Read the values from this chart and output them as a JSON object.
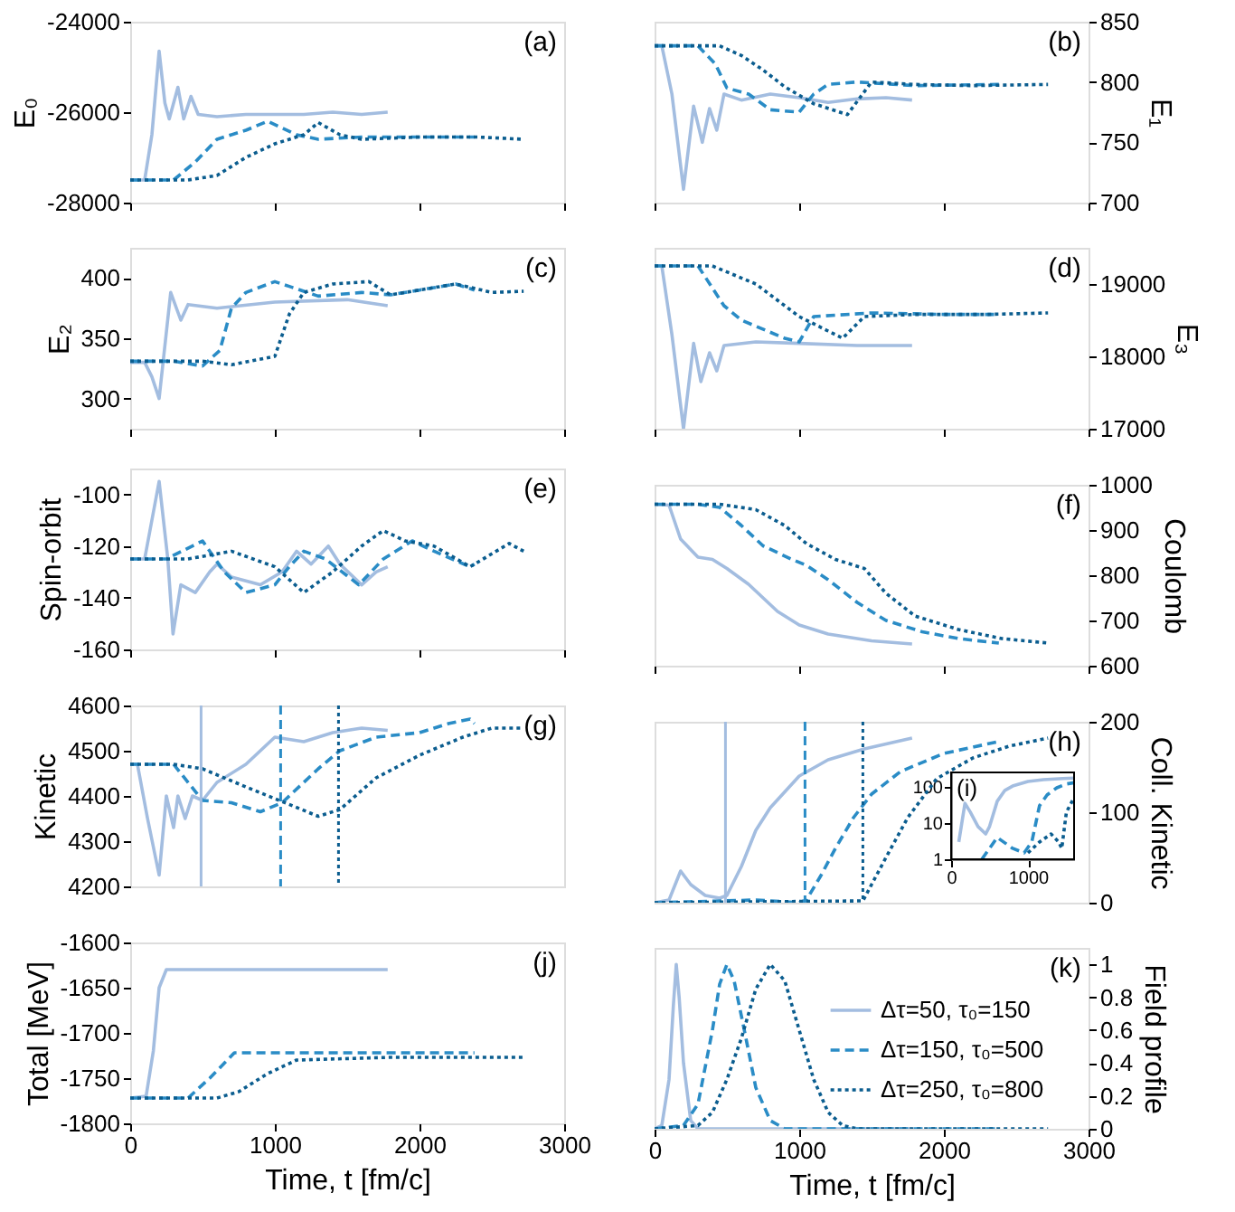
{
  "chart_data": [
    {
      "type": "line",
      "ylabel": "E₀",
      "xlim": [
        0,
        3000
      ],
      "xticks": [
        0,
        1000,
        2000,
        3000
      ],
      "ylim": [
        -28000,
        -24000
      ],
      "yticks": [
        -28000,
        -26000,
        -24000
      ],
      "tick_labels": "y",
      "annotations": [
        "(a)"
      ],
      "series": [
        {
          "color": "#a3bde0",
          "line_style": "solid",
          "x": [
            0,
            100,
            150,
            200,
            240,
            270,
            330,
            370,
            420,
            470,
            600,
            800,
            1000,
            1200,
            1400,
            1600,
            1780
          ],
          "values": [
            -27500,
            -27500,
            -26500,
            -24650,
            -25800,
            -26150,
            -25450,
            -26150,
            -25650,
            -26050,
            -26100,
            -26050,
            -26050,
            -26050,
            -26000,
            -26050,
            -26000
          ]
        },
        {
          "color": "#2a8cc6",
          "line_style": "dashed",
          "x": [
            0,
            300,
            450,
            600,
            800,
            950,
            1150,
            1300,
            1600,
            2000,
            2380
          ],
          "values": [
            -27500,
            -27500,
            -27100,
            -26600,
            -26400,
            -26200,
            -26500,
            -26600,
            -26550,
            -26550,
            -26550
          ]
        },
        {
          "color": "#0b5d8f",
          "line_style": "dotted",
          "x": [
            0,
            400,
            600,
            800,
            1000,
            1200,
            1300,
            1450,
            1600,
            2000,
            2400,
            2720
          ],
          "values": [
            -27500,
            -27500,
            -27400,
            -27000,
            -26700,
            -26500,
            -26230,
            -26500,
            -26600,
            -26550,
            -26550,
            -26600
          ]
        }
      ]
    },
    {
      "type": "line",
      "ylabel": "E₁",
      "xlim": [
        0,
        3000
      ],
      "xticks": [
        0,
        1000,
        2000,
        3000
      ],
      "ylim": [
        700,
        850
      ],
      "yticks": [
        700,
        750,
        800,
        850
      ],
      "tick_labels": "y",
      "annotations": [
        "(b)"
      ],
      "series": [
        {
          "color": "#a3bde0",
          "line_style": "solid",
          "x": [
            0,
            50,
            120,
            200,
            270,
            330,
            380,
            430,
            480,
            600,
            800,
            1000,
            1200,
            1400,
            1600,
            1780
          ],
          "values": [
            830,
            830,
            790,
            711,
            780,
            750,
            778,
            760,
            790,
            785,
            790,
            787,
            783,
            786,
            787,
            785
          ]
        },
        {
          "color": "#2a8cc6",
          "line_style": "dashed",
          "x": [
            0,
            300,
            420,
            500,
            650,
            800,
            1000,
            1100,
            1200,
            1400,
            1800,
            2380
          ],
          "values": [
            830,
            830,
            815,
            795,
            790,
            777,
            775,
            790,
            798,
            800,
            797,
            798
          ]
        },
        {
          "color": "#0b5d8f",
          "line_style": "dotted",
          "x": [
            0,
            450,
            600,
            750,
            900,
            1100,
            1333,
            1500,
            1800,
            2200,
            2720
          ],
          "values": [
            830,
            830,
            822,
            810,
            796,
            782,
            773,
            800,
            798,
            797,
            798
          ]
        }
      ]
    },
    {
      "type": "line",
      "ylabel": "E₂",
      "xlim": [
        0,
        3000
      ],
      "xticks": [
        0,
        1000,
        2000,
        3000
      ],
      "ylim": [
        275,
        425
      ],
      "yticks": [
        300,
        350,
        400
      ],
      "tick_labels": "y",
      "annotations": [
        "(c)"
      ],
      "series": [
        {
          "color": "#a3bde0",
          "line_style": "solid",
          "x": [
            0,
            100,
            150,
            200,
            280,
            350,
            400,
            600,
            1000,
            1500,
            1780
          ],
          "values": [
            330,
            330,
            318,
            300,
            388,
            365,
            378,
            375,
            380,
            382,
            377
          ]
        },
        {
          "color": "#2a8cc6",
          "line_style": "dashed",
          "x": [
            0,
            300,
            500,
            620,
            700,
            800,
            1000,
            1100,
            1300,
            1600,
            1800,
            2000,
            2250,
            2380
          ],
          "values": [
            331,
            331,
            327,
            340,
            375,
            388,
            397,
            393,
            385,
            388,
            386,
            390,
            395,
            390
          ]
        },
        {
          "color": "#0b5d8f",
          "line_style": "dotted",
          "x": [
            0,
            500,
            700,
            1000,
            1100,
            1200,
            1400,
            1650,
            1800,
            2100,
            2250,
            2500,
            2720
          ],
          "values": [
            331,
            331,
            328,
            335,
            370,
            388,
            395,
            397,
            386,
            392,
            395,
            388,
            389
          ]
        }
      ]
    },
    {
      "type": "line",
      "ylabel": "E₃",
      "xlim": [
        0,
        3000
      ],
      "xticks": [
        0,
        1000,
        2000,
        3000
      ],
      "ylim": [
        17000,
        19500
      ],
      "yticks": [
        17000,
        18000,
        19000
      ],
      "tick_labels": "y",
      "annotations": [
        "(d)"
      ],
      "series": [
        {
          "color": "#a3bde0",
          "line_style": "solid",
          "x": [
            0,
            50,
            120,
            200,
            270,
            320,
            380,
            430,
            480,
            700,
            1000,
            1400,
            1780
          ],
          "values": [
            19250,
            19250,
            18300,
            17000,
            18180,
            17650,
            18050,
            17800,
            18150,
            18200,
            18180,
            18150,
            18150
          ]
        },
        {
          "color": "#2a8cc6",
          "line_style": "dashed",
          "x": [
            0,
            300,
            480,
            600,
            900,
            1000,
            1100,
            1500,
            2000,
            2380
          ],
          "values": [
            19250,
            19250,
            18700,
            18500,
            18250,
            18200,
            18550,
            18600,
            18580,
            18580
          ]
        },
        {
          "color": "#0b5d8f",
          "line_style": "dotted",
          "x": [
            0,
            400,
            700,
            1000,
            1200,
            1300,
            1450,
            1800,
            2300,
            2720
          ],
          "values": [
            19250,
            19250,
            19000,
            18550,
            18350,
            18250,
            18550,
            18580,
            18580,
            18600
          ]
        }
      ]
    },
    {
      "type": "line",
      "ylabel": "Spin-orbit",
      "xlim": [
        0,
        3000
      ],
      "xticks": [
        0,
        1000,
        2000,
        3000
      ],
      "ylim": [
        -160,
        -90
      ],
      "yticks": [
        -160,
        -140,
        -120,
        -100
      ],
      "tick_labels": "y",
      "annotations": [
        "(e)"
      ],
      "series": [
        {
          "color": "#a3bde0",
          "line_style": "solid",
          "x": [
            0,
            100,
            200,
            260,
            296,
            350,
            450,
            550,
            600,
            700,
            900,
            1050,
            1150,
            1250,
            1370,
            1450,
            1600,
            1700,
            1780
          ],
          "values": [
            -125,
            -125,
            -95,
            -125,
            -154,
            -135,
            -138,
            -130,
            -127,
            -132,
            -135,
            -130,
            -122,
            -127,
            -120,
            -127,
            -135,
            -130,
            -128
          ]
        },
        {
          "color": "#2a8cc6",
          "line_style": "dashed",
          "x": [
            0,
            250,
            500,
            650,
            800,
            1000,
            1100,
            1200,
            1350,
            1580,
            1750,
            1950,
            2100,
            2350,
            2380
          ],
          "values": [
            -125,
            -125,
            -118,
            -130,
            -138,
            -135,
            -128,
            -122,
            -125,
            -135,
            -125,
            -118,
            -122,
            -128,
            -127
          ]
        },
        {
          "color": "#0b5d8f",
          "line_style": "dotted",
          "x": [
            0,
            400,
            700,
            1000,
            1200,
            1400,
            1600,
            1750,
            1900,
            2100,
            2350,
            2500,
            2620,
            2720
          ],
          "values": [
            -125,
            -125,
            -122,
            -128,
            -138,
            -130,
            -120,
            -114,
            -118,
            -120,
            -128,
            -123,
            -119,
            -122
          ]
        }
      ]
    },
    {
      "type": "line",
      "ylabel": "Coulomb",
      "xlim": [
        0,
        3000
      ],
      "xticks": [
        0,
        1000,
        2000,
        3000
      ],
      "ylim": [
        600,
        1000
      ],
      "yticks": [
        600,
        700,
        800,
        900,
        1000
      ],
      "tick_labels": "y",
      "annotations": [
        "(f)"
      ],
      "series": [
        {
          "color": "#a3bde0",
          "line_style": "solid",
          "x": [
            0,
            100,
            180,
            300,
            400,
            500,
            650,
            850,
            1000,
            1200,
            1500,
            1780
          ],
          "values": [
            957,
            955,
            880,
            840,
            835,
            815,
            780,
            720,
            690,
            670,
            655,
            648
          ]
        },
        {
          "color": "#2a8cc6",
          "line_style": "dashed",
          "x": [
            0,
            300,
            450,
            600,
            750,
            950,
            1050,
            1200,
            1400,
            1600,
            1850,
            2100,
            2380
          ],
          "values": [
            957,
            957,
            950,
            910,
            865,
            835,
            822,
            790,
            740,
            700,
            675,
            660,
            650
          ]
        },
        {
          "color": "#0b5d8f",
          "line_style": "dotted",
          "x": [
            0,
            450,
            700,
            900,
            1050,
            1250,
            1450,
            1600,
            1800,
            2100,
            2400,
            2720
          ],
          "values": [
            957,
            957,
            945,
            910,
            870,
            835,
            815,
            760,
            710,
            680,
            660,
            650
          ]
        }
      ]
    },
    {
      "type": "line",
      "ylabel": "Kinetic",
      "xlim": [
        0,
        3000
      ],
      "xticks": [
        0,
        1000,
        2000,
        3000
      ],
      "ylim": [
        4200,
        4600
      ],
      "yticks": [
        4200,
        4300,
        4400,
        4500,
        4600
      ],
      "tick_labels": "y",
      "annotations": [
        "(g)"
      ],
      "ref_lines": [
        {
          "axis": "x",
          "value": 490,
          "color": "#a3bde0",
          "line_style": "solid"
        },
        {
          "axis": "x",
          "value": 1040,
          "color": "#2a8cc6",
          "line_style": "dashed"
        },
        {
          "axis": "x",
          "value": 1440,
          "color": "#0b5d8f",
          "line_style": "dotted"
        }
      ],
      "series": [
        {
          "color": "#a3bde0",
          "line_style": "solid",
          "x": [
            0,
            50,
            120,
            200,
            250,
            300,
            330,
            380,
            430,
            500,
            600,
            800,
            900,
            1000,
            1200,
            1400,
            1600,
            1780
          ],
          "values": [
            4470,
            4470,
            4350,
            4225,
            4400,
            4330,
            4400,
            4350,
            4400,
            4390,
            4430,
            4470,
            4500,
            4530,
            4520,
            4540,
            4550,
            4545
          ]
        },
        {
          "color": "#2a8cc6",
          "line_style": "dashed",
          "x": [
            0,
            300,
            500,
            700,
            900,
            1050,
            1300,
            1450,
            1700,
            2000,
            2200,
            2350,
            2380
          ],
          "values": [
            4470,
            4470,
            4390,
            4385,
            4365,
            4385,
            4460,
            4500,
            4530,
            4540,
            4560,
            4570,
            4560
          ]
        },
        {
          "color": "#0b5d8f",
          "line_style": "dotted",
          "x": [
            0,
            300,
            500,
            800,
            1300,
            1450,
            1700,
            2000,
            2300,
            2500,
            2720
          ],
          "values": [
            4470,
            4470,
            4460,
            4420,
            4355,
            4370,
            4440,
            4490,
            4530,
            4550,
            4550
          ]
        }
      ]
    },
    {
      "type": "line",
      "ylabel": "Coll. Kinetic",
      "xlim": [
        0,
        3000
      ],
      "xticks": [
        0,
        1000,
        2000,
        3000
      ],
      "ylim": [
        0,
        200
      ],
      "yticks": [
        0,
        100,
        200
      ],
      "tick_labels": "y",
      "annotations": [
        "(h)"
      ],
      "ref_lines": [
        {
          "axis": "x",
          "value": 490,
          "color": "#a3bde0",
          "line_style": "solid"
        },
        {
          "axis": "x",
          "value": 1040,
          "color": "#2a8cc6",
          "line_style": "dashed"
        },
        {
          "axis": "x",
          "value": 1440,
          "color": "#0b5d8f",
          "line_style": "dotted"
        }
      ],
      "series": [
        {
          "color": "#a3bde0",
          "line_style": "solid",
          "x": [
            0,
            100,
            180,
            250,
            350,
            450,
            500,
            600,
            700,
            800,
            1000,
            1200,
            1450,
            1780
          ],
          "values": [
            0,
            3,
            35,
            20,
            8,
            5,
            8,
            40,
            80,
            105,
            140,
            158,
            170,
            182
          ]
        },
        {
          "color": "#2a8cc6",
          "line_style": "dashed",
          "x": [
            0,
            700,
            1000,
            1050,
            1150,
            1250,
            1375,
            1500,
            1700,
            2000,
            2375
          ],
          "values": [
            0,
            3,
            0,
            3,
            30,
            60,
            94,
            120,
            145,
            165,
            178
          ]
        },
        {
          "color": "#0b5d8f",
          "line_style": "dotted",
          "x": [
            0,
            1440,
            1500,
            1600,
            1750,
            1950,
            2200,
            2450,
            2720
          ],
          "values": [
            0,
            2,
            20,
            50,
            94,
            137,
            160,
            173,
            182
          ]
        }
      ]
    },
    {
      "type": "line",
      "xlim": [
        0,
        1600
      ],
      "xticks": [
        0,
        1000
      ],
      "ylim": [
        1,
        250
      ],
      "yticks": [
        1,
        10,
        100
      ],
      "log": "y",
      "annotations": [
        "(i)"
      ],
      "series": [
        {
          "color": "#a3bde0",
          "line_style": "solid",
          "x": [
            100,
            180,
            250,
            350,
            450,
            500,
            600,
            700,
            800,
            1000,
            1200,
            1450,
            1600
          ],
          "values": [
            3,
            35,
            20,
            8,
            5,
            8,
            40,
            80,
            105,
            140,
            158,
            170,
            175
          ]
        },
        {
          "color": "#2a8cc6",
          "line_style": "dashed",
          "x": [
            400,
            600,
            800,
            950,
            1050,
            1150,
            1250,
            1375,
            1500,
            1600
          ],
          "values": [
            1,
            4,
            2,
            1.5,
            3,
            30,
            60,
            94,
            120,
            130
          ]
        },
        {
          "color": "#0b5d8f",
          "line_style": "dotted",
          "x": [
            1000,
            1150,
            1300,
            1400,
            1440,
            1500,
            1600
          ],
          "values": [
            1.5,
            3,
            5,
            3,
            2,
            20,
            50
          ]
        }
      ]
    },
    {
      "type": "line",
      "ylabel": "Total [MeV]",
      "xlabel": "Time, t [fm/c]",
      "xlim": [
        0,
        3000
      ],
      "xticks": [
        0,
        1000,
        2000,
        3000
      ],
      "ylim": [
        -1800,
        -1600
      ],
      "yticks": [
        -1800,
        -1750,
        -1700,
        -1650,
        -1600
      ],
      "annotations": [
        "(j)"
      ],
      "series": [
        {
          "color": "#a3bde0",
          "line_style": "solid",
          "x": [
            0,
            110,
            160,
            200,
            250,
            500,
            1000,
            1500,
            1780
          ],
          "values": [
            -1772,
            -1770,
            -1720,
            -1650,
            -1630,
            -1630,
            -1630,
            -1630,
            -1630
          ]
        },
        {
          "color": "#2a8cc6",
          "line_style": "dashed",
          "x": [
            0,
            400,
            550,
            720,
            1200,
            1800,
            2380
          ],
          "values": [
            -1772,
            -1772,
            -1750,
            -1722,
            -1722,
            -1722,
            -1722
          ]
        },
        {
          "color": "#0b5d8f",
          "line_style": "dotted",
          "x": [
            0,
            600,
            750,
            950,
            1150,
            1800,
            2720
          ],
          "values": [
            -1772,
            -1772,
            -1765,
            -1745,
            -1730,
            -1727,
            -1727
          ]
        }
      ]
    },
    {
      "type": "line",
      "ylabel": "Field profile",
      "xlabel": "Time, t [fm/c]",
      "xlim": [
        0,
        3000
      ],
      "xticks": [
        0,
        1000,
        2000,
        3000
      ],
      "ylim": [
        0,
        1.1
      ],
      "yticks": [
        0,
        0.2,
        0.4,
        0.6,
        0.8,
        1
      ],
      "legend": "right",
      "annotations": [
        "(k)"
      ],
      "series": [
        {
          "name": "Δτ=50, τ₀=150",
          "color": "#a3bde0",
          "line_style": "solid",
          "x": [
            0,
            50,
            100,
            130,
            150,
            170,
            200,
            250,
            300,
            1780
          ],
          "values": [
            0,
            0.02,
            0.3,
            0.75,
            1,
            0.8,
            0.4,
            0.05,
            0,
            0
          ]
        },
        {
          "name": "Δτ=150, τ₀=500",
          "color": "#2a8cc6",
          "line_style": "dashed",
          "x": [
            0,
            200,
            300,
            400,
            450,
            500,
            550,
            625,
            700,
            800,
            900,
            2380
          ],
          "values": [
            0,
            0.02,
            0.15,
            0.6,
            0.88,
            1,
            0.9,
            0.58,
            0.25,
            0.05,
            0,
            0
          ]
        },
        {
          "name": "Δτ=250, τ₀=800",
          "color": "#0b5d8f",
          "line_style": "dotted",
          "x": [
            0,
            300,
            400,
            500,
            600,
            700,
            800,
            900,
            1000,
            1100,
            1200,
            1300,
            1400,
            2720
          ],
          "values": [
            0,
            0.02,
            0.1,
            0.3,
            0.55,
            0.85,
            1,
            0.9,
            0.6,
            0.3,
            0.1,
            0.02,
            0,
            0
          ]
        }
      ]
    }
  ]
}
